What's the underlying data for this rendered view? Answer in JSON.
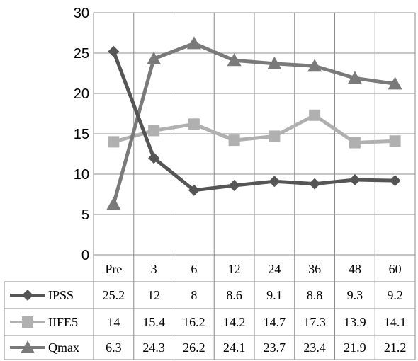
{
  "chart_data": {
    "type": "line",
    "categories": [
      "Pre",
      "3",
      "6",
      "12",
      "24",
      "36",
      "48",
      "60"
    ],
    "ylim": [
      0,
      30
    ],
    "yticks": [
      0,
      5,
      10,
      15,
      20,
      25,
      30
    ],
    "grid": true,
    "legend": "data-table",
    "series": [
      {
        "name": "IPSS",
        "marker": "diamond",
        "color": "#555555",
        "values": [
          25.2,
          12,
          8,
          8.6,
          9.1,
          8.8,
          9.3,
          9.2
        ]
      },
      {
        "name": "IIFE5",
        "marker": "square",
        "color": "#b0b0b0",
        "values": [
          14,
          15.4,
          16.2,
          14.2,
          14.7,
          17.3,
          13.9,
          14.1
        ]
      },
      {
        "name": "Qmax",
        "marker": "triangle",
        "color": "#7a7a7a",
        "values": [
          6.3,
          24.3,
          26.2,
          24.1,
          23.7,
          23.4,
          21.9,
          21.2
        ]
      }
    ],
    "table_values": [
      [
        "25.2",
        "12",
        "8",
        "8.6",
        "9.1",
        "8.8",
        "9.3",
        "9.2"
      ],
      [
        "14",
        "15.4",
        "16.2",
        "14.2",
        "14.7",
        "17.3",
        "13.9",
        "14.1"
      ],
      [
        "6.3",
        "24.3",
        "26.2",
        "24.1",
        "23.7",
        "23.4",
        "21.9",
        "21.2"
      ]
    ]
  }
}
